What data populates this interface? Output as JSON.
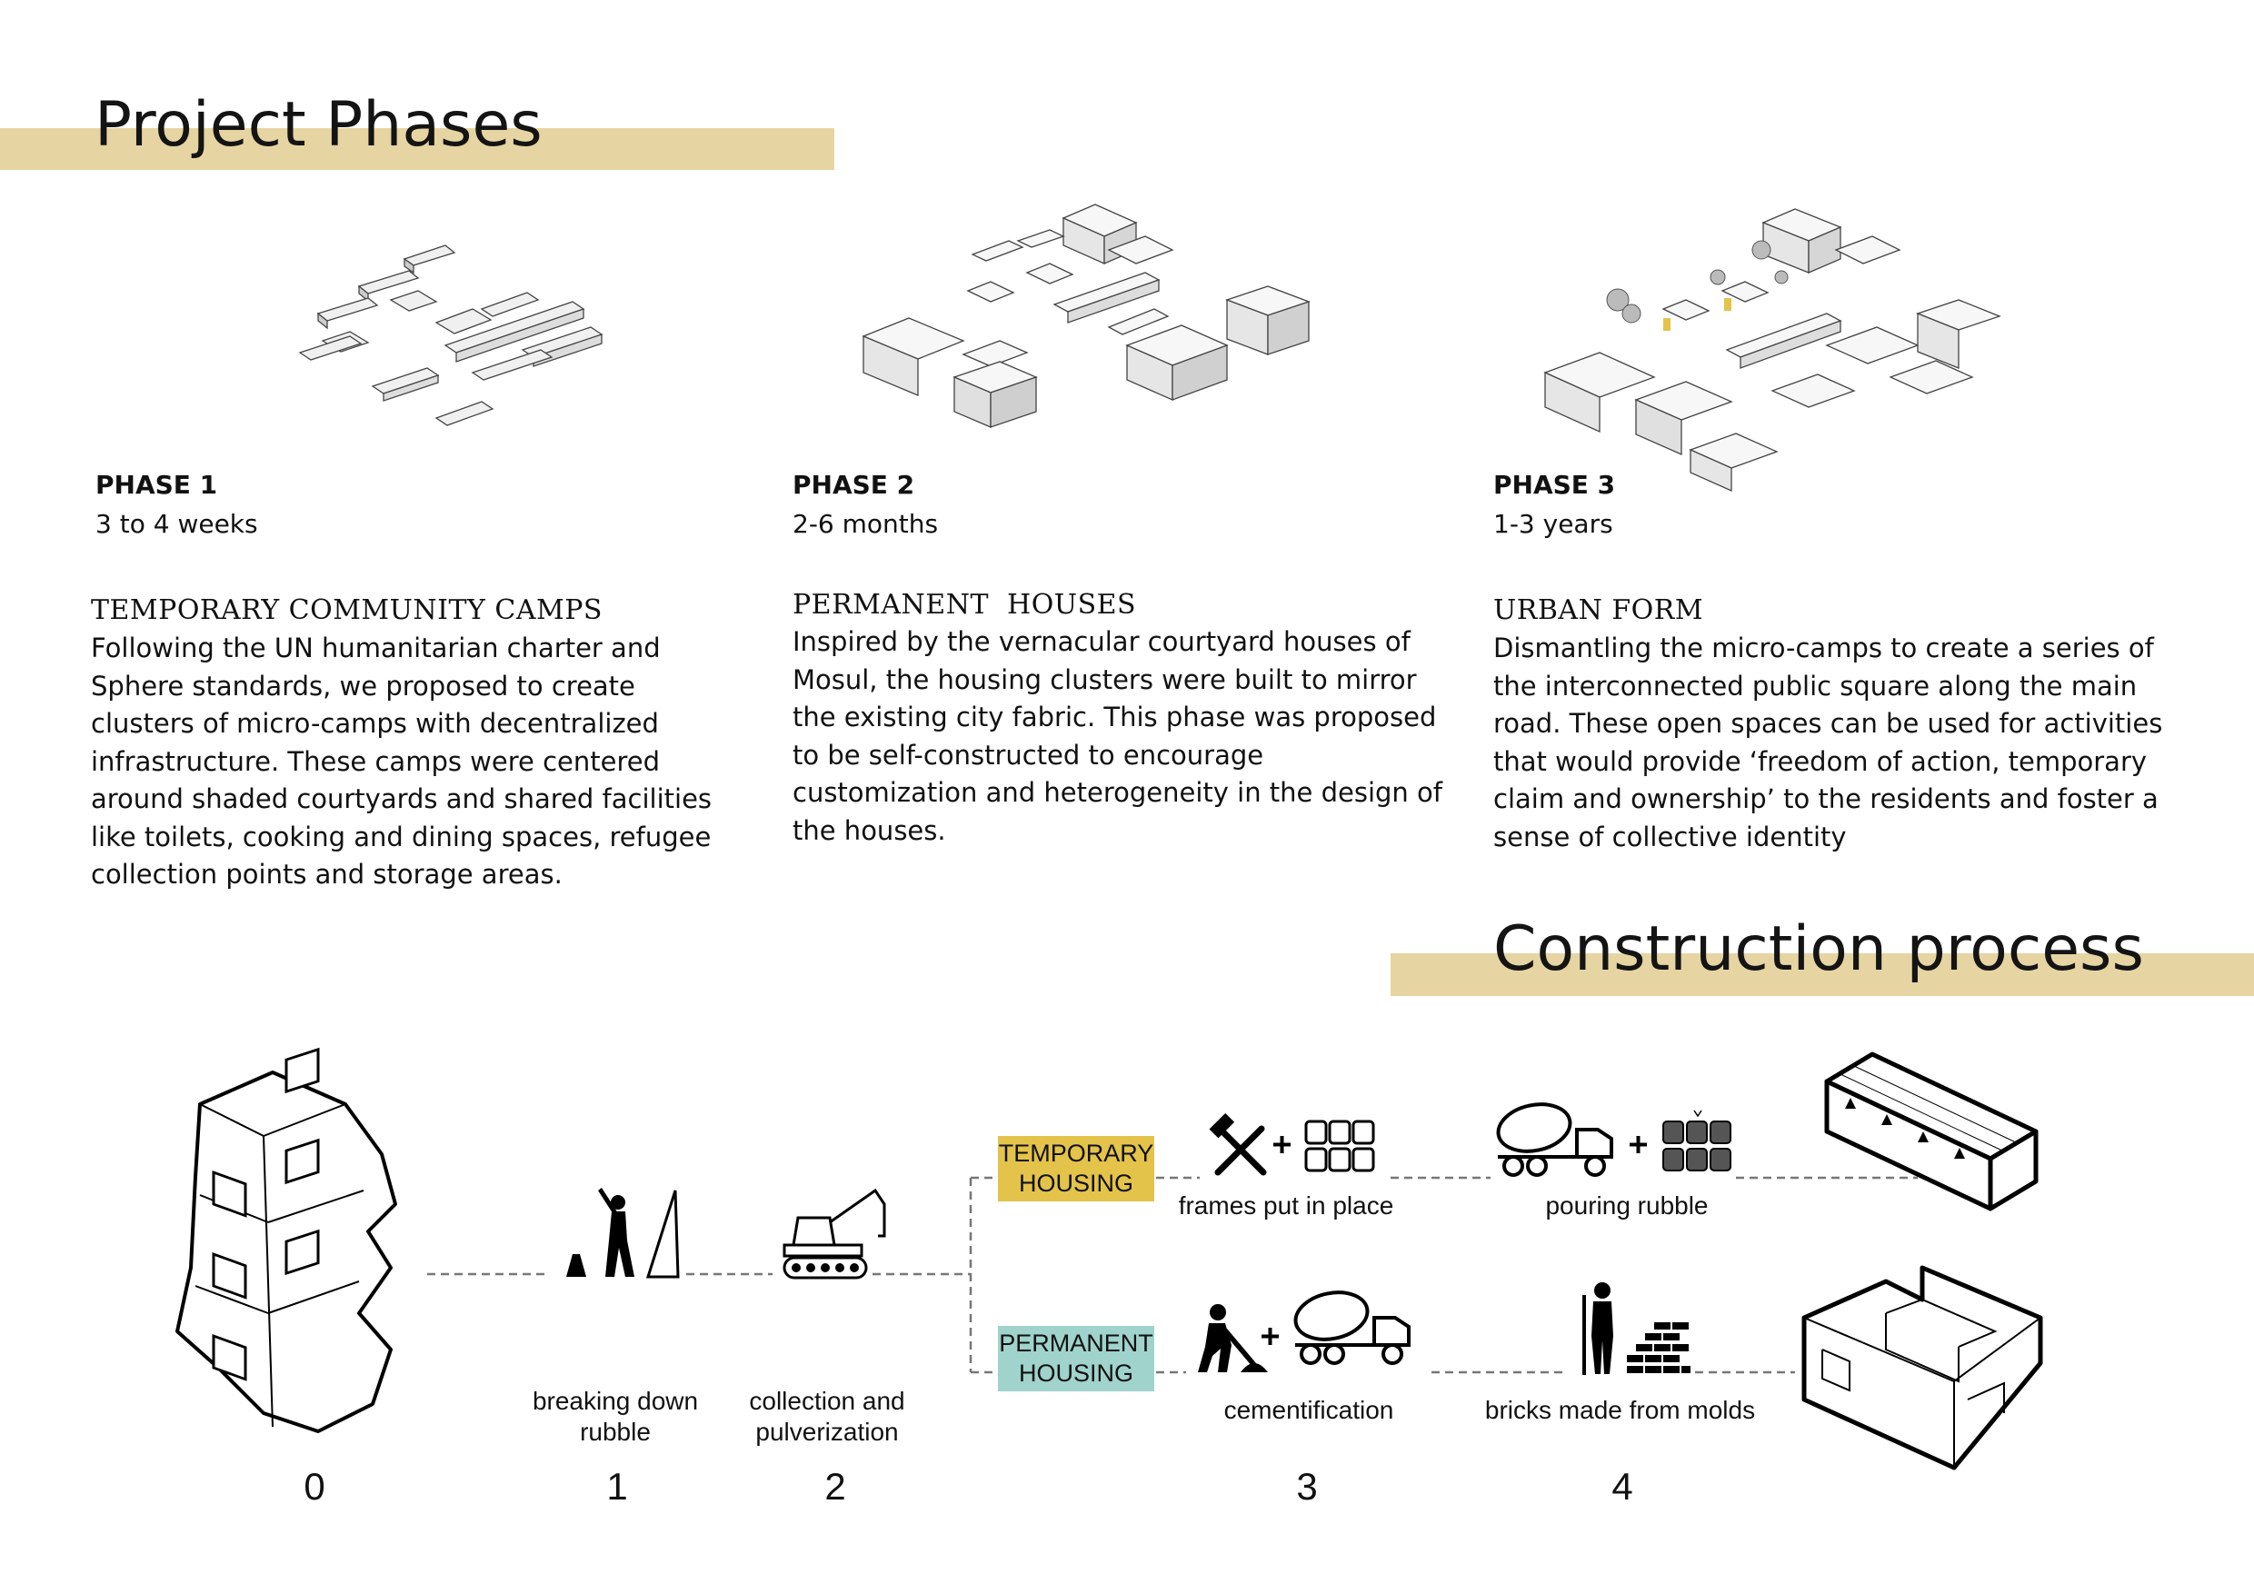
{
  "project_phases": {
    "title": "Project Phases",
    "phases": [
      {
        "label": "PHASE 1",
        "duration": "3 to 4 weeks",
        "heading": "TEMPORARY COMMUNITY CAMPS",
        "description": "Following the UN humanitarian charter and Sphere standards, we proposed to create clusters of micro-camps with decentralized infrastructure. These camps were centered around shaded courtyards and shared facilities like toilets, cooking and dining spaces, refugee collection points and storage areas."
      },
      {
        "label": "PHASE 2",
        "duration": "2-6 months",
        "heading": "PERMANENT  HOUSES",
        "description": "Inspired by the vernacular courtyard houses of Mosul, the housing clusters were built to mirror the existing city fabric. This phase was proposed to be self-constructed to encourage customization and heterogeneity in the design of the houses."
      },
      {
        "label": "PHASE 3",
        "duration": "1-3 years",
        "heading": "URBAN FORM",
        "description": "Dismantling the micro-camps to create a series of the interconnected public square along the main road. These open spaces can be used for activities that would provide ‘freedom of action, temporary claim and ownership’ to the residents and foster a sense of collective identity"
      }
    ]
  },
  "construction_process": {
    "title": "Construction process",
    "steps": {
      "breaking": "breaking down\nrubble",
      "collection": "collection and\npulverization",
      "frames": "frames put in place",
      "pouring": "pouring rubble",
      "cementification": "cementification",
      "bricks": "bricks made from molds"
    },
    "tracks": {
      "temporary": "TEMPORARY\nHOUSING",
      "permanent": "PERMANENT\nHOUSING"
    },
    "numbers": [
      "0",
      "1",
      "2",
      "3",
      "4"
    ],
    "colors": {
      "title_bar": "#e6d5a2",
      "temporary_tag": "#e3c34a",
      "permanent_tag": "#9fd3cc"
    }
  },
  "icons": [
    "demolished-building-icon",
    "worker-pickaxe-icon",
    "excavator-icon",
    "hammer-wrench-icon",
    "frame-grid-icon",
    "cement-mixer-truck-icon",
    "rubble-blocks-icon",
    "worker-shovel-icon",
    "brick-stack-icon",
    "worker-standing-icon",
    "temporary-house-icon",
    "permanent-house-icon"
  ]
}
